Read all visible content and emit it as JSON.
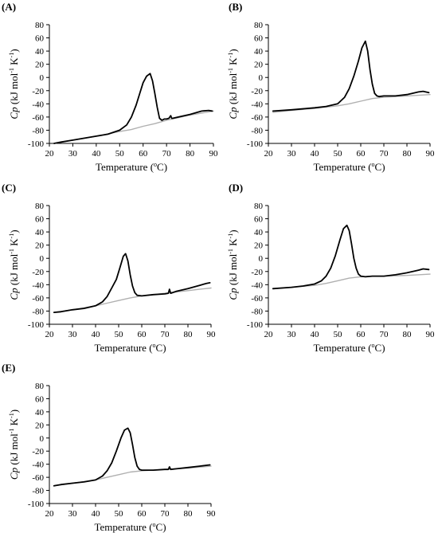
{
  "chart_data": [
    {
      "type": "line",
      "label": "(A)",
      "xlabel": "Temperature (",
      "xlabel_sup": "o",
      "xlabel_end": "C)",
      "ylabel_main": "Cp",
      "ylabel_rest": "(kJ mol",
      "ylabel_sup1": "-1",
      "ylabel_mid": " K",
      "ylabel_sup2": "-1",
      "ylabel_end": ")",
      "xlim": [
        20,
        90
      ],
      "ylim": [
        -100,
        80
      ],
      "xticks": [
        20,
        30,
        40,
        50,
        60,
        70,
        80,
        90
      ],
      "yticks": [
        -100,
        -80,
        -60,
        -40,
        -20,
        0,
        20,
        40,
        60,
        80
      ],
      "colors": {
        "measured": "#000000",
        "baseline": "#b0b0b0"
      },
      "series": [
        {
          "role": "measured",
          "x": [
            22,
            25,
            30,
            35,
            40,
            45,
            50,
            53,
            55,
            57,
            58.5,
            60,
            61.5,
            63,
            64,
            65,
            66,
            67,
            68,
            69,
            70,
            71,
            71.8,
            72.2,
            72.6,
            75,
            80,
            85,
            88,
            89.5
          ],
          "y": [
            -100,
            -98,
            -95,
            -92,
            -89,
            -86,
            -80,
            -72,
            -60,
            -42,
            -25,
            -8,
            2,
            6,
            -5,
            -24,
            -45,
            -62,
            -65,
            -63,
            -63,
            -62,
            -58,
            -62,
            -62,
            -60,
            -56,
            -51,
            -50,
            -51
          ]
        },
        {
          "role": "baseline",
          "x": [
            22,
            30,
            40,
            50,
            55,
            60,
            65,
            70,
            75,
            80,
            85,
            90
          ],
          "y": [
            -100,
            -95,
            -89,
            -82,
            -79,
            -74,
            -70,
            -65,
            -61,
            -57,
            -54,
            -51
          ]
        }
      ]
    },
    {
      "type": "line",
      "label": "(B)",
      "xlabel": "Temperature (",
      "xlabel_sup": "o",
      "xlabel_end": "C)",
      "ylabel_main": "Cp",
      "ylabel_rest": "(kJ mol",
      "ylabel_sup1": "-1",
      "ylabel_mid": " K",
      "ylabel_sup2": "-1",
      "ylabel_end": ")",
      "xlim": [
        20,
        90
      ],
      "ylim": [
        -100,
        80
      ],
      "xticks": [
        20,
        30,
        40,
        50,
        60,
        70,
        80,
        90
      ],
      "yticks": [
        -100,
        -80,
        -60,
        -40,
        -20,
        0,
        20,
        40,
        60,
        80
      ],
      "colors": {
        "measured": "#000000",
        "baseline": "#b0b0b0"
      },
      "series": [
        {
          "role": "measured",
          "x": [
            22,
            30,
            40,
            45,
            50,
            53,
            55,
            57,
            59,
            60.5,
            62,
            63,
            64,
            65,
            66,
            67,
            68,
            70,
            75,
            80,
            85,
            87,
            89.5
          ],
          "y": [
            -51,
            -49,
            -46,
            -44,
            -40,
            -30,
            -17,
            2,
            25,
            45,
            55,
            40,
            12,
            -10,
            -24,
            -28,
            -29,
            -28,
            -28,
            -26,
            -22,
            -21,
            -23
          ]
        },
        {
          "role": "baseline",
          "x": [
            22,
            30,
            40,
            50,
            55,
            60,
            65,
            70,
            75,
            80,
            85,
            90
          ],
          "y": [
            -53,
            -50,
            -47,
            -43,
            -40,
            -36,
            -32,
            -30,
            -29,
            -28,
            -27,
            -26
          ]
        }
      ]
    },
    {
      "type": "line",
      "label": "(C)",
      "xlabel": "Temperature (",
      "xlabel_sup": "o",
      "xlabel_end": "C)",
      "ylabel_main": "Cp",
      "ylabel_rest": "(kJ mol",
      "ylabel_sup1": "-1",
      "ylabel_mid": " K",
      "ylabel_sup2": "-1",
      "ylabel_end": ")",
      "xlim": [
        20,
        90
      ],
      "ylim": [
        -100,
        80
      ],
      "xticks": [
        20,
        30,
        40,
        50,
        60,
        70,
        80,
        90
      ],
      "yticks": [
        -100,
        -80,
        -60,
        -40,
        -20,
        0,
        20,
        40,
        60,
        80
      ],
      "colors": {
        "measured": "#000000",
        "baseline": "#b0b0b0"
      },
      "series": [
        {
          "role": "measured",
          "x": [
            22,
            25,
            30,
            35,
            40,
            43,
            45,
            47,
            49,
            50.5,
            52,
            53,
            54,
            55,
            56,
            57,
            58,
            60,
            65,
            70,
            71.5,
            72,
            72.5,
            75,
            80,
            85,
            88,
            89.5
          ],
          "y": [
            -82,
            -81,
            -78,
            -76,
            -72,
            -66,
            -58,
            -45,
            -32,
            -15,
            3,
            7,
            -4,
            -25,
            -42,
            -52,
            -56,
            -57,
            -55,
            -54,
            -53,
            -47,
            -53,
            -50,
            -46,
            -41,
            -38,
            -37
          ]
        },
        {
          "role": "baseline",
          "x": [
            22,
            30,
            40,
            45,
            50,
            55,
            60,
            65,
            70,
            75,
            80,
            85,
            90
          ],
          "y": [
            -82,
            -78,
            -72,
            -68,
            -64,
            -60,
            -57,
            -55,
            -53,
            -51,
            -49,
            -47,
            -45
          ]
        }
      ]
    },
    {
      "type": "line",
      "label": "(D)",
      "xlabel": "Temperature (",
      "xlabel_sup": "o",
      "xlabel_end": "C)",
      "ylabel_main": "Cp",
      "ylabel_rest": "(kJ mol",
      "ylabel_sup1": "-1",
      "ylabel_mid": " K",
      "ylabel_sup2": "-1",
      "ylabel_end": ")",
      "xlim": [
        20,
        90
      ],
      "ylim": [
        -100,
        80
      ],
      "xticks": [
        20,
        30,
        40,
        50,
        60,
        70,
        80,
        90
      ],
      "yticks": [
        -100,
        -80,
        -60,
        -40,
        -20,
        0,
        20,
        40,
        60,
        80
      ],
      "colors": {
        "measured": "#000000",
        "baseline": "#b0b0b0"
      },
      "series": [
        {
          "role": "measured",
          "x": [
            22,
            30,
            35,
            40,
            43,
            45,
            47,
            49,
            51,
            52.5,
            54,
            55,
            56,
            57,
            58,
            59,
            60,
            62,
            65,
            70,
            75,
            80,
            85,
            87,
            89.5
          ],
          "y": [
            -46,
            -44,
            -42,
            -39,
            -34,
            -27,
            -15,
            4,
            28,
            45,
            50,
            42,
            22,
            0,
            -15,
            -24,
            -27,
            -28,
            -27,
            -27,
            -25,
            -22,
            -18,
            -16,
            -17
          ]
        },
        {
          "role": "baseline",
          "x": [
            22,
            30,
            40,
            45,
            50,
            55,
            60,
            65,
            70,
            80,
            90
          ],
          "y": [
            -46,
            -44,
            -41,
            -38,
            -34,
            -30,
            -28,
            -27,
            -27,
            -26,
            -24
          ]
        }
      ]
    },
    {
      "type": "line",
      "label": "(E)",
      "xlabel": "Temperature (",
      "xlabel_sup": "o",
      "xlabel_end": "C)",
      "ylabel_main": "Cp",
      "ylabel_rest": "(kJ mol",
      "ylabel_sup1": "-1",
      "ylabel_mid": " K",
      "ylabel_sup2": "-1",
      "ylabel_end": ")",
      "xlim": [
        20,
        90
      ],
      "ylim": [
        -100,
        80
      ],
      "xticks": [
        20,
        30,
        40,
        50,
        60,
        70,
        80,
        90
      ],
      "yticks": [
        -100,
        -80,
        -60,
        -40,
        -20,
        0,
        20,
        40,
        60,
        80
      ],
      "colors": {
        "measured": "#000000",
        "baseline": "#b0b0b0"
      },
      "series": [
        {
          "role": "measured",
          "x": [
            22,
            25,
            30,
            35,
            40,
            43,
            45,
            47,
            49,
            51,
            52.5,
            54,
            55,
            56,
            57,
            58,
            59,
            60,
            62,
            65,
            70,
            71.5,
            72,
            72.5,
            75,
            80,
            85,
            89.5
          ],
          "y": [
            -73,
            -71,
            -69,
            -67,
            -64,
            -58,
            -50,
            -38,
            -20,
            0,
            12,
            15,
            8,
            -10,
            -30,
            -43,
            -48,
            -49,
            -49,
            -49,
            -48,
            -48,
            -44,
            -48,
            -47,
            -45,
            -43,
            -41
          ]
        },
        {
          "role": "baseline",
          "x": [
            22,
            30,
            40,
            45,
            50,
            55,
            60,
            65,
            70,
            80,
            90
          ],
          "y": [
            -73,
            -69,
            -64,
            -60,
            -56,
            -52,
            -50,
            -49,
            -48,
            -46,
            -43
          ]
        }
      ]
    }
  ]
}
